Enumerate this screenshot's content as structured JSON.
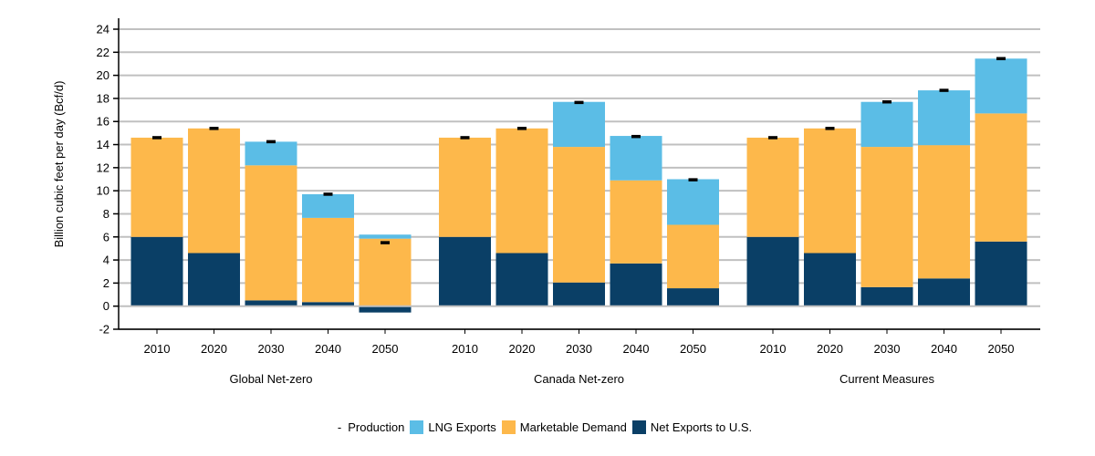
{
  "chart_data": {
    "type": "bar",
    "stacked": true,
    "ylabel": "Billion cubic feet per day (Bcf/d)",
    "ylim": [
      -2,
      24
    ],
    "yticks": [
      -2,
      0,
      2,
      4,
      6,
      8,
      10,
      12,
      14,
      16,
      18,
      20,
      22,
      24
    ],
    "grid": true,
    "legend_position": "bottom",
    "groups": [
      {
        "name": "Global Net-zero",
        "categories": [
          "2010",
          "2020",
          "2030",
          "2040",
          "2050"
        ],
        "net_exports": [
          6.0,
          4.6,
          0.5,
          0.35,
          -0.55
        ],
        "marketable_demand": [
          8.6,
          10.8,
          11.7,
          7.3,
          5.85
        ],
        "lng_exports": [
          0.0,
          0.0,
          2.05,
          2.05,
          0.35
        ],
        "production": [
          14.6,
          15.4,
          14.25,
          9.7,
          5.5
        ]
      },
      {
        "name": "Canada Net-zero",
        "categories": [
          "2010",
          "2020",
          "2030",
          "2040",
          "2050"
        ],
        "net_exports": [
          6.0,
          4.6,
          2.05,
          3.7,
          1.55
        ],
        "marketable_demand": [
          8.6,
          10.8,
          11.75,
          7.2,
          5.5
        ],
        "lng_exports": [
          0.0,
          0.0,
          3.9,
          3.85,
          3.95
        ],
        "production": [
          14.6,
          15.4,
          17.65,
          14.7,
          10.95
        ]
      },
      {
        "name": "Current Measures",
        "categories": [
          "2010",
          "2020",
          "2030",
          "2040",
          "2050"
        ],
        "net_exports": [
          6.0,
          4.6,
          1.65,
          2.4,
          5.6
        ],
        "marketable_demand": [
          8.6,
          10.8,
          12.15,
          11.55,
          11.1
        ],
        "lng_exports": [
          0.0,
          0.0,
          3.9,
          4.75,
          4.75
        ],
        "production": [
          14.6,
          15.4,
          17.7,
          18.7,
          21.45
        ]
      }
    ],
    "legend": [
      {
        "key": "production",
        "label": "Production",
        "marker": "dash",
        "color": "#000000"
      },
      {
        "key": "lng_exports",
        "label": "LNG Exports",
        "marker": "square",
        "color": "#5bbde6"
      },
      {
        "key": "marketable_demand",
        "label": "Marketable Demand",
        "marker": "square",
        "color": "#fdb84b"
      },
      {
        "key": "net_exports",
        "label": "Net Exports to U.S.",
        "marker": "square",
        "color": "#0a3f66"
      }
    ],
    "colors": {
      "net_exports": "#0a3f66",
      "marketable_demand": "#fdb84b",
      "lng_exports": "#5bbde6",
      "production": "#000000",
      "gridline": "#c0c0c0",
      "axis": "#000000"
    }
  }
}
